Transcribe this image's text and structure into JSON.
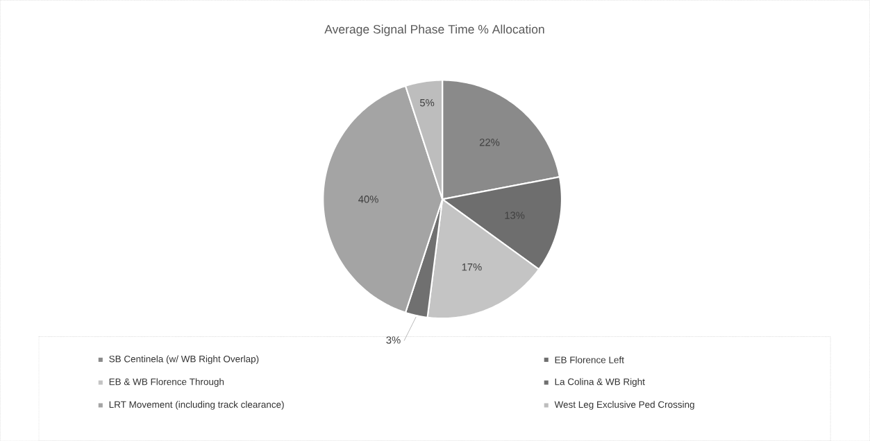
{
  "chart_data": {
    "type": "pie",
    "title": "Average Signal Phase Time % Allocation",
    "categories": [
      "SB Centinela (w/ WB Right Overlap)",
      "EB Florence Left",
      "EB & WB Florence Through",
      "La Colina & WB Right",
      "LRT Movement (including track clearance)",
      "West Leg Exclusive Ped Crossing"
    ],
    "values": [
      22,
      13,
      17,
      3,
      40,
      5
    ],
    "value_labels": [
      "22%",
      "13%",
      "17%",
      "3%",
      "40%",
      "5%"
    ],
    "colors": [
      "#8a8a8a",
      "#6e6e6e",
      "#c4c4c4",
      "#707070",
      "#a4a4a4",
      "#bdbdbd"
    ],
    "legend": "bottom"
  }
}
